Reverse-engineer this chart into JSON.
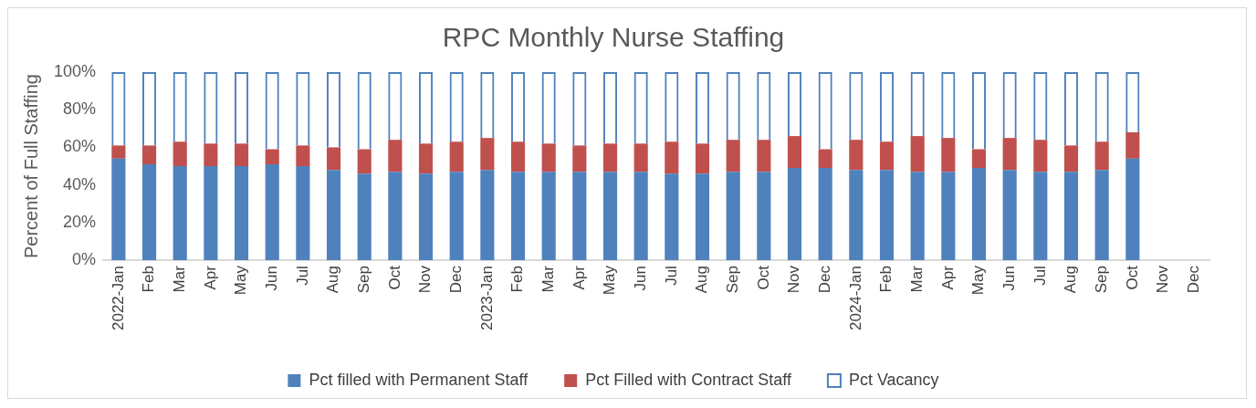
{
  "chart_data": {
    "type": "bar",
    "title": "RPC Monthly Nurse Staffing",
    "ylabel": "Percent of Full Staffing",
    "stacked": true,
    "grid": false,
    "legend": "bottom",
    "categories": [
      "2022-Jan",
      "Feb",
      "Mar",
      "Apr",
      "May",
      "Jun",
      "Jul",
      "Aug",
      "Sep",
      "Oct",
      "Nov",
      "Dec",
      "2023-Jan",
      "Feb",
      "Mar",
      "Apr",
      "May",
      "Jun",
      "Jul",
      "Aug",
      "Sep",
      "Oct",
      "Nov",
      "Dec",
      "2024-Jan",
      "Feb",
      "Mar",
      "Apr",
      "May",
      "Jun",
      "Jul",
      "Aug",
      "Sep",
      "Oct",
      "Nov",
      "Dec"
    ],
    "ylim": [
      0,
      100
    ],
    "yticks": [
      {
        "value": 0,
        "label": "0%"
      },
      {
        "value": 20,
        "label": "20%"
      },
      {
        "value": 40,
        "label": "40%"
      },
      {
        "value": 60,
        "label": "60%"
      },
      {
        "value": 80,
        "label": "80%"
      },
      {
        "value": 100,
        "label": "100%"
      }
    ],
    "series": [
      {
        "name": "Pct filled with Permanent Staff",
        "color": "#4f81bd",
        "values": [
          54,
          51,
          50,
          50,
          50,
          51,
          50,
          48,
          46,
          47,
          46,
          47,
          48,
          47,
          47,
          47,
          47,
          47,
          46,
          46,
          47,
          47,
          49,
          49,
          48,
          48,
          47,
          47,
          49,
          48,
          47,
          47,
          48,
          54,
          null,
          null
        ]
      },
      {
        "name": "Pct Filled with Contract Staff",
        "color": "#c0504d",
        "values": [
          7,
          10,
          13,
          12,
          12,
          8,
          11,
          12,
          13,
          17,
          16,
          16,
          17,
          16,
          15,
          14,
          15,
          15,
          17,
          16,
          17,
          17,
          17,
          10,
          16,
          15,
          19,
          18,
          10,
          17,
          17,
          14,
          15,
          14,
          null,
          null
        ]
      },
      {
        "name": "Pct Vacancy",
        "color": "#4f81bd",
        "values": [
          39,
          39,
          37,
          38,
          38,
          41,
          39,
          40,
          41,
          36,
          38,
          37,
          35,
          37,
          38,
          39,
          38,
          38,
          37,
          38,
          36,
          36,
          34,
          41,
          36,
          37,
          34,
          35,
          41,
          35,
          36,
          39,
          37,
          32,
          null,
          null
        ]
      }
    ]
  }
}
